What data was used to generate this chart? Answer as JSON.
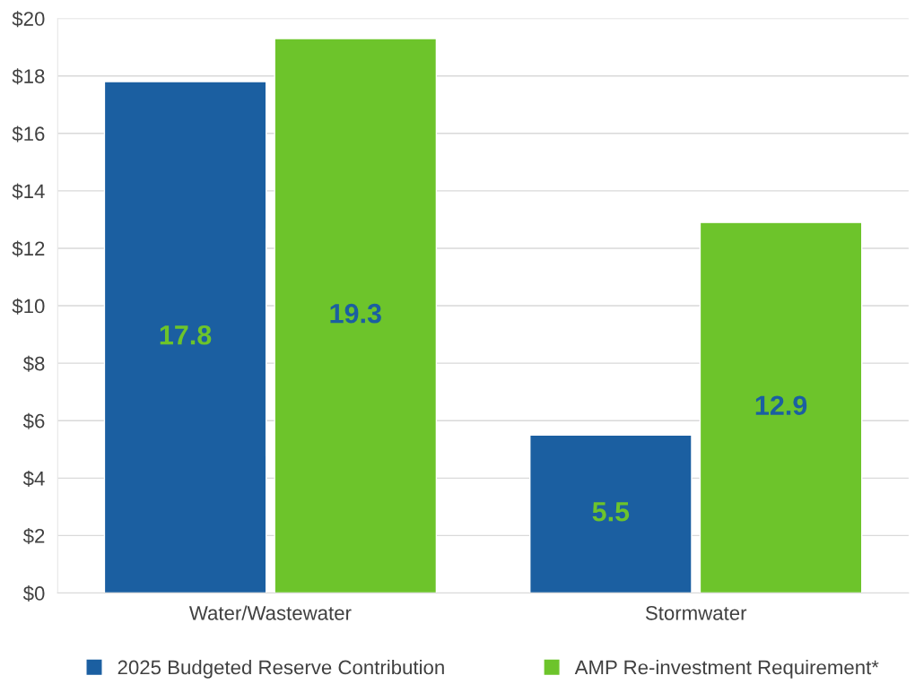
{
  "chart_data": {
    "type": "bar",
    "categories": [
      "Water/Wastewater",
      "Stormwater"
    ],
    "series": [
      {
        "name": "2025 Budgeted Reserve Contribution",
        "color": "#1b5fa1",
        "values": [
          17.8,
          5.5
        ]
      },
      {
        "name": "AMP Re-investment Requirement*",
        "color": "#6dc42b",
        "values": [
          19.3,
          12.9
        ]
      }
    ],
    "ylim": [
      0,
      20
    ],
    "yticks": [
      {
        "value": 0,
        "label": "$0"
      },
      {
        "value": 2,
        "label": "$2"
      },
      {
        "value": 4,
        "label": "$4"
      },
      {
        "value": 6,
        "label": "$6"
      },
      {
        "value": 8,
        "label": "$8"
      },
      {
        "value": 10,
        "label": "$10"
      },
      {
        "value": 12,
        "label": "$12"
      },
      {
        "value": 14,
        "label": "$14"
      },
      {
        "value": 16,
        "label": "$16"
      },
      {
        "value": 18,
        "label": "$18"
      },
      {
        "value": 20,
        "label": "$20"
      }
    ],
    "grid": "y",
    "legend": "bottom",
    "data_labels": true
  }
}
